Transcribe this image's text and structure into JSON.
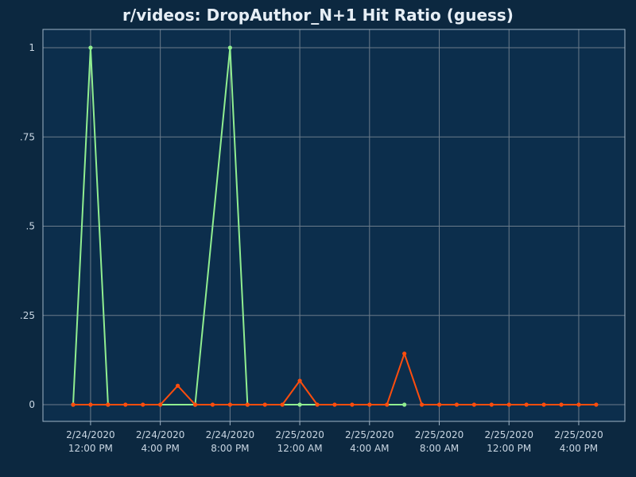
{
  "chart_data": {
    "type": "line",
    "title": "r/videos: DropAuthor_N+1 Hit Ratio (guess)",
    "xlabel": "",
    "ylabel": "",
    "ylim": [
      0,
      1.05
    ],
    "grid": true,
    "legend": "none",
    "x": [
      "2/24/2020 11:00 AM",
      "2/24/2020 12:00 PM",
      "2/24/2020 1:00 PM",
      "2/24/2020 2:00 PM",
      "2/24/2020 3:00 PM",
      "2/24/2020 4:00 PM",
      "2/24/2020 5:00 PM",
      "2/24/2020 6:00 PM",
      "2/24/2020 7:00 PM",
      "2/24/2020 8:00 PM",
      "2/24/2020 9:00 PM",
      "2/24/2020 10:00 PM",
      "2/24/2020 11:00 PM",
      "2/25/2020 12:00 AM",
      "2/25/2020 1:00 AM",
      "2/25/2020 2:00 AM",
      "2/25/2020 3:00 AM",
      "2/25/2020 4:00 AM",
      "2/25/2020 5:00 AM",
      "2/25/2020 6:00 AM",
      "2/25/2020 7:00 AM",
      "2/25/2020 8:00 AM",
      "2/25/2020 9:00 AM",
      "2/25/2020 10:00 AM",
      "2/25/2020 11:00 AM",
      "2/25/2020 12:00 PM",
      "2/25/2020 1:00 PM",
      "2/25/2020 2:00 PM",
      "2/25/2020 3:00 PM",
      "2/25/2020 4:00 PM",
      "2/25/2020 5:00 PM"
    ],
    "series": [
      {
        "color": "#90ee90",
        "points": [
          {
            "x": "2/24/2020 11:00 AM",
            "y": 0
          },
          {
            "x": "2/24/2020 12:00 PM",
            "y": 1
          },
          {
            "x": "2/24/2020 1:00 PM",
            "y": 0
          },
          {
            "x": "2/24/2020 6:00 PM",
            "y": 0
          },
          {
            "x": "2/24/2020 8:00 PM",
            "y": 1
          },
          {
            "x": "2/24/2020 9:00 PM",
            "y": 0
          },
          {
            "x": "2/25/2020 12:00 AM",
            "y": 0
          },
          {
            "x": "2/25/2020 6:00 AM",
            "y": 0
          }
        ]
      },
      {
        "color": "#ff4d0d",
        "points": [
          {
            "x": "2/24/2020 11:00 AM",
            "y": 0
          },
          {
            "x": "2/24/2020 12:00 PM",
            "y": 0
          },
          {
            "x": "2/24/2020 1:00 PM",
            "y": 0
          },
          {
            "x": "2/24/2020 2:00 PM",
            "y": 0
          },
          {
            "x": "2/24/2020 3:00 PM",
            "y": 0
          },
          {
            "x": "2/24/2020 4:00 PM",
            "y": 0
          },
          {
            "x": "2/24/2020 5:00 PM",
            "y": 0.053
          },
          {
            "x": "2/24/2020 6:00 PM",
            "y": 0
          },
          {
            "x": "2/24/2020 7:00 PM",
            "y": 0
          },
          {
            "x": "2/24/2020 8:00 PM",
            "y": 0
          },
          {
            "x": "2/24/2020 9:00 PM",
            "y": 0
          },
          {
            "x": "2/24/2020 10:00 PM",
            "y": 0
          },
          {
            "x": "2/24/2020 11:00 PM",
            "y": 0
          },
          {
            "x": "2/25/2020 12:00 AM",
            "y": 0.067
          },
          {
            "x": "2/25/2020 1:00 AM",
            "y": 0
          },
          {
            "x": "2/25/2020 2:00 AM",
            "y": 0
          },
          {
            "x": "2/25/2020 3:00 AM",
            "y": 0
          },
          {
            "x": "2/25/2020 4:00 AM",
            "y": 0
          },
          {
            "x": "2/25/2020 5:00 AM",
            "y": 0
          },
          {
            "x": "2/25/2020 6:00 AM",
            "y": 0.143
          },
          {
            "x": "2/25/2020 7:00 AM",
            "y": 0
          },
          {
            "x": "2/25/2020 8:00 AM",
            "y": 0
          },
          {
            "x": "2/25/2020 9:00 AM",
            "y": 0
          },
          {
            "x": "2/25/2020 10:00 AM",
            "y": 0
          },
          {
            "x": "2/25/2020 11:00 AM",
            "y": 0
          },
          {
            "x": "2/25/2020 12:00 PM",
            "y": 0
          },
          {
            "x": "2/25/2020 1:00 PM",
            "y": 0
          },
          {
            "x": "2/25/2020 2:00 PM",
            "y": 0
          },
          {
            "x": "2/25/2020 3:00 PM",
            "y": 0
          },
          {
            "x": "2/25/2020 4:00 PM",
            "y": 0
          },
          {
            "x": "2/25/2020 5:00 PM",
            "y": 0
          }
        ]
      }
    ],
    "y_ticks": [
      {
        "value": 0,
        "label": "0"
      },
      {
        "value": 0.25,
        "label": ".25"
      },
      {
        "value": 0.5,
        "label": ".5"
      },
      {
        "value": 0.75,
        "label": ".75"
      },
      {
        "value": 1,
        "label": "1"
      }
    ],
    "x_ticks": [
      {
        "value": "2/24/2020 12:00 PM",
        "line1": "2/24/2020",
        "line2": "12:00 PM"
      },
      {
        "value": "2/24/2020 4:00 PM",
        "line1": "2/24/2020",
        "line2": "4:00 PM"
      },
      {
        "value": "2/24/2020 8:00 PM",
        "line1": "2/24/2020",
        "line2": "8:00 PM"
      },
      {
        "value": "2/25/2020 12:00 AM",
        "line1": "2/25/2020",
        "line2": "12:00 AM"
      },
      {
        "value": "2/25/2020 4:00 AM",
        "line1": "2/25/2020",
        "line2": "4:00 AM"
      },
      {
        "value": "2/25/2020 8:00 AM",
        "line1": "2/25/2020",
        "line2": "8:00 AM"
      },
      {
        "value": "2/25/2020 12:00 PM",
        "line1": "2/25/2020",
        "line2": "12:00 PM"
      },
      {
        "value": "2/25/2020 4:00 PM",
        "line1": "2/25/2020",
        "line2": "4:00 PM"
      }
    ],
    "colors": {
      "page_background": "#0c2840",
      "plot_background": "#0c2e4c",
      "grid": "#6b7b8a",
      "frame": "#9fb4c6"
    }
  }
}
